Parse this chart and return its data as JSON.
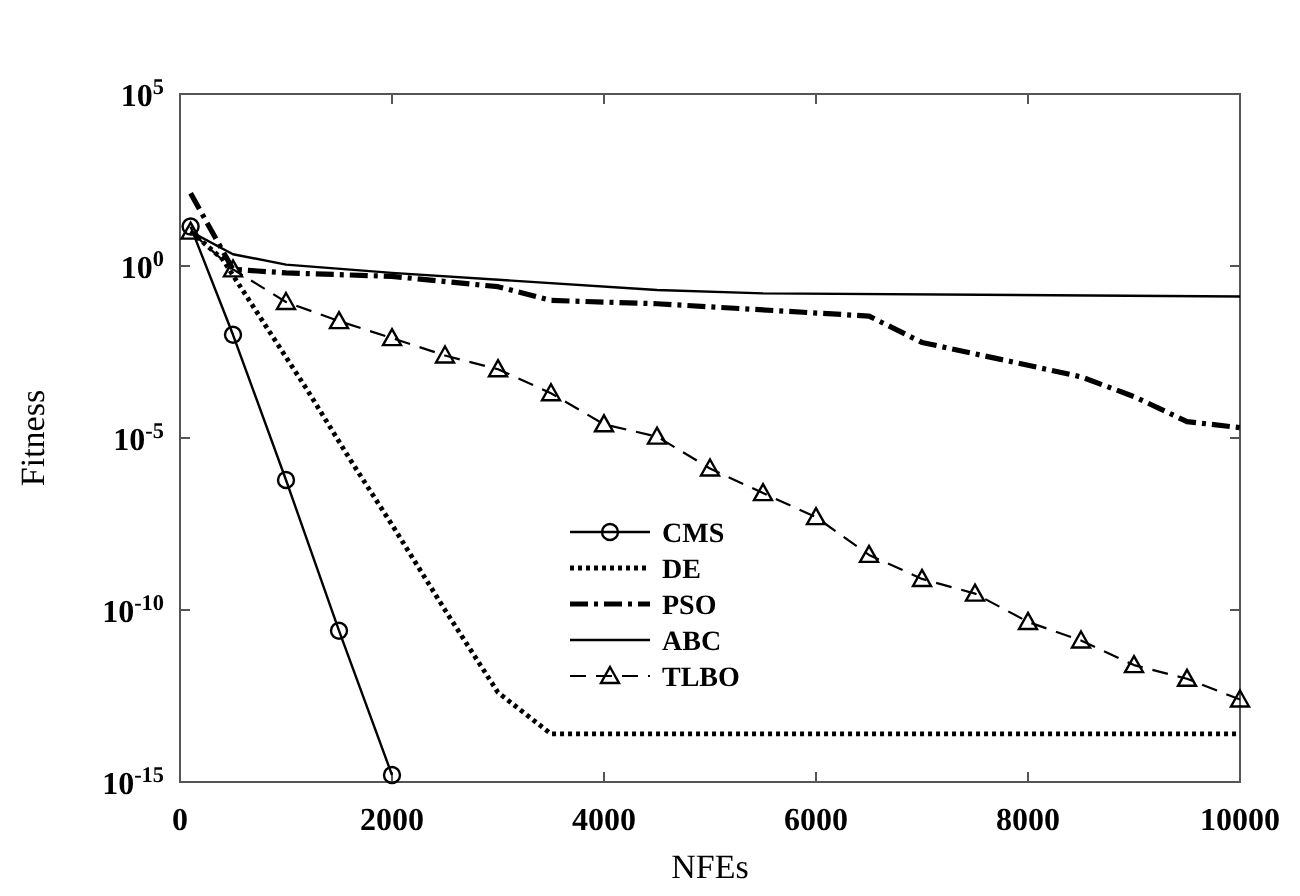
{
  "chart_data": {
    "type": "line",
    "xlabel": "NFEs",
    "ylabel": "Fitness",
    "log": "y",
    "xlim": [
      0,
      10000
    ],
    "xticks": [
      0,
      2000,
      4000,
      6000,
      8000,
      10000
    ],
    "ylim": [
      1e-15,
      100000.0
    ],
    "yticks": [
      {
        "value": 1e-15,
        "label": "10$^{-15}$"
      },
      {
        "value": 1e-10,
        "label": "10$^{-10}$"
      },
      {
        "value": 1e-05,
        "label": "10$^{-5}$"
      },
      {
        "value": 1,
        "label": "10$^{0}$"
      },
      {
        "value": 100000.0,
        "label": "10$^{5}$"
      }
    ],
    "grid": false,
    "legend": "bottom",
    "series": [
      {
        "name": "CMS",
        "color": "#000000",
        "marker": "circle",
        "line_style": "solid",
        "x": [
          100,
          500,
          1000,
          1500,
          2000
        ],
        "values": [
          14,
          0.01,
          6e-07,
          2.5e-11,
          1.6e-15
        ]
      },
      {
        "name": "DE",
        "color": "#000000",
        "marker": "none",
        "line_style": "dotted",
        "x": [
          100,
          400,
          800,
          1200,
          1600,
          2000,
          2500,
          3000,
          3500,
          10000
        ],
        "values": [
          10,
          1.6,
          0.02,
          0.00025,
          2.5e-06,
          3e-08,
          1e-10,
          4e-13,
          2.5e-14,
          2.5e-14
        ]
      },
      {
        "name": "PSO",
        "color": "#000000",
        "marker": "none",
        "line_style": "dashdot",
        "x": [
          100,
          500,
          1000,
          2000,
          3000,
          3500,
          4500,
          6500,
          7000,
          8000,
          8500,
          9000,
          9500,
          10000
        ],
        "values": [
          130,
          0.8,
          0.63,
          0.5,
          0.25,
          0.1,
          0.08,
          0.035,
          0.006,
          0.0013,
          0.0006,
          0.00016,
          3e-05,
          2e-05
        ]
      },
      {
        "name": "ABC",
        "color": "#000000",
        "marker": "none",
        "line_style": "solid",
        "x": [
          100,
          500,
          1000,
          2000,
          4500,
          5500,
          10000
        ],
        "values": [
          10,
          2.2,
          1.1,
          0.63,
          0.2,
          0.16,
          0.13
        ]
      },
      {
        "name": "TLBO",
        "color": "#000000",
        "marker": "triangle",
        "line_style": "dashed",
        "x": [
          100,
          500,
          1000,
          1500,
          2000,
          2500,
          3000,
          3500,
          4000,
          4500,
          5000,
          5500,
          6000,
          6500,
          7000,
          7500,
          8000,
          8500,
          9000,
          9500,
          10000
        ],
        "values": [
          10,
          0.8,
          0.09,
          0.025,
          0.008,
          0.0025,
          0.001,
          0.0002,
          2.5e-05,
          1.1e-05,
          1.3e-06,
          2.5e-07,
          5e-08,
          4e-09,
          8e-10,
          3e-10,
          4.5e-11,
          1.3e-11,
          2.5e-12,
          1e-12,
          2.5e-13
        ]
      }
    ]
  }
}
